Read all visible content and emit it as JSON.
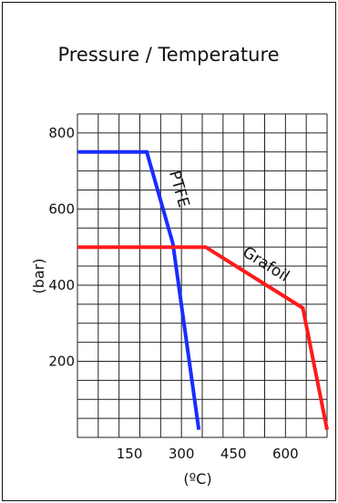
{
  "chart_data": {
    "type": "line",
    "title": "Pressure / Temperature",
    "xlabel": "(ºC)",
    "ylabel": "(bar)",
    "xlim": [
      0,
      720
    ],
    "ylim": [
      0,
      850
    ],
    "xticks": [
      150,
      300,
      450,
      600
    ],
    "xtick_labels": [
      "150",
      "300",
      "450",
      "600"
    ],
    "yticks": [
      200,
      400,
      600,
      800
    ],
    "ytick_labels": [
      "200",
      "400",
      "600",
      "800"
    ],
    "grid": true,
    "series": [
      {
        "name": "PTFE",
        "color": "#1a2cff",
        "points": [
          [
            0,
            750
          ],
          [
            200,
            750
          ],
          [
            275,
            510
          ],
          [
            350,
            20
          ]
        ]
      },
      {
        "name": "Grafoil",
        "color": "#ff1a1a",
        "points": [
          [
            0,
            500
          ],
          [
            370,
            500
          ],
          [
            650,
            340
          ],
          [
            720,
            20
          ]
        ]
      }
    ]
  }
}
